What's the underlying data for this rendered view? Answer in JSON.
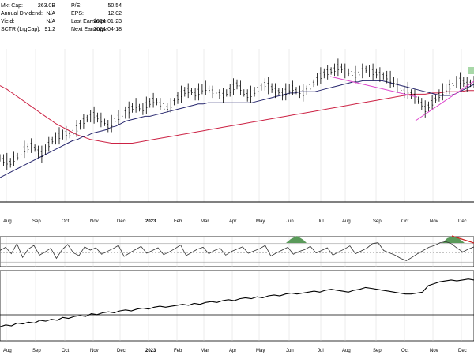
{
  "stats": [
    {
      "label": "Mkt Cap:",
      "value": "263.0B"
    },
    {
      "label": "Annual Dividend:",
      "value": "N/A"
    },
    {
      "label": "Yield:",
      "value": "N/A"
    },
    {
      "label": "SCTR (LrgCap):",
      "value": "91.2"
    },
    {
      "label": "P/E:",
      "value": "50.54"
    },
    {
      "label": "EPS:",
      "value": "12.02"
    },
    {
      "label": "Last Earnings:",
      "value": "2024-01-23"
    },
    {
      "label": "Next Earnings:",
      "value": "2024-04-18"
    }
  ],
  "chart_data": {
    "type": "line",
    "x_labels": [
      "Aug",
      "Sep",
      "Oct",
      "Nov",
      "Dec",
      "2023",
      "Feb",
      "Mar",
      "Apr",
      "May",
      "Jun",
      "Jul",
      "Aug",
      "Sep",
      "Oct",
      "Nov",
      "Dec"
    ],
    "year_labels": [
      "2023"
    ],
    "price": [
      96,
      94,
      93,
      92,
      95,
      97,
      100,
      103,
      104,
      106,
      104,
      101,
      99,
      103,
      107,
      110,
      112,
      114,
      115,
      116,
      115,
      117,
      120,
      123,
      126,
      128,
      130,
      131,
      129,
      127,
      125,
      122,
      124,
      127,
      129,
      131,
      133,
      135,
      137,
      139,
      137,
      136,
      139,
      141,
      143,
      142,
      140,
      138,
      137,
      139,
      142,
      145,
      148,
      150,
      151,
      150,
      148,
      150,
      152,
      153,
      152,
      150,
      151,
      148,
      147,
      149,
      151,
      154,
      156,
      153,
      149,
      147,
      148,
      150,
      152,
      154,
      156,
      155,
      153,
      151,
      150,
      148,
      150,
      152,
      153,
      151,
      150,
      149,
      151,
      154,
      157,
      160,
      163,
      165,
      166,
      167,
      168,
      170,
      169,
      167,
      166,
      165,
      164,
      165,
      167,
      168,
      167,
      166,
      165,
      164,
      163,
      162,
      160,
      158,
      155,
      152,
      150,
      151,
      148,
      146,
      143,
      140,
      136,
      138,
      141,
      144,
      147,
      150,
      152,
      154,
      156,
      158,
      159,
      158,
      156,
      157,
      158
    ],
    "ma50": [
      80,
      82,
      84,
      86,
      88,
      90,
      92,
      94,
      96,
      98,
      100,
      102,
      104,
      106,
      108,
      110,
      111,
      113,
      114,
      116,
      117,
      118,
      119,
      121,
      122,
      124,
      126,
      127,
      128,
      129,
      130,
      130,
      131,
      132,
      133,
      134,
      135,
      136,
      137,
      138,
      139,
      140,
      140,
      141,
      141,
      141,
      141,
      141,
      141,
      141,
      141,
      141,
      141,
      142,
      143,
      144,
      145,
      146,
      147,
      148,
      149,
      149,
      150,
      150,
      150,
      150,
      151,
      152,
      153,
      154,
      155,
      156,
      157,
      158,
      158,
      159,
      159,
      159,
      159,
      159,
      158,
      157,
      156,
      155,
      154,
      153,
      152,
      151,
      150,
      149,
      148,
      147,
      147,
      147,
      148,
      150,
      152,
      154,
      156
    ],
    "ma200": [
      155,
      152,
      148,
      144,
      140,
      136,
      132,
      128,
      124,
      121,
      118,
      115,
      113,
      111,
      110,
      109,
      108,
      108,
      108,
      108,
      109,
      110,
      111,
      112,
      113,
      114,
      115,
      116,
      117,
      118,
      119,
      120,
      121,
      122,
      123,
      124,
      125,
      126,
      127,
      128,
      129,
      130,
      131,
      132,
      133,
      134,
      135,
      136,
      137,
      138,
      139,
      140,
      141,
      142,
      143,
      144,
      145,
      146,
      147,
      148,
      148,
      148,
      149,
      149,
      150,
      150,
      150,
      151,
      151
    ],
    "rsi": [
      55,
      62,
      48,
      70,
      40,
      58,
      66,
      45,
      52,
      60,
      38,
      57,
      68,
      50,
      44,
      63,
      56,
      61,
      47,
      53,
      59,
      66,
      42,
      50,
      57,
      64,
      49,
      55,
      61,
      46,
      52,
      59,
      67,
      44,
      51,
      58,
      62,
      48,
      55,
      60,
      45,
      53,
      58,
      63,
      49,
      54,
      59,
      66,
      43,
      50,
      56,
      62,
      47,
      53,
      57,
      64,
      50,
      55,
      61,
      45,
      52,
      58,
      65,
      48,
      54,
      60,
      70,
      72,
      55,
      50,
      45,
      38,
      33,
      40,
      48,
      55,
      62,
      66,
      72,
      74,
      70,
      60,
      52,
      58,
      63
    ],
    "rsi_lines": [
      30,
      50,
      70
    ],
    "lower": [
      30,
      32,
      31,
      34,
      33,
      35,
      34,
      37,
      36,
      38,
      37,
      40,
      39,
      41,
      42,
      41,
      44,
      43,
      45,
      46,
      45,
      47,
      48,
      47,
      49,
      50,
      49,
      51,
      52,
      51,
      52,
      53,
      54,
      53,
      55,
      54,
      56,
      57,
      56,
      58,
      59,
      58,
      60,
      61,
      60,
      62,
      61,
      63,
      64,
      63,
      65,
      66,
      65,
      66,
      67,
      68,
      67,
      69,
      70,
      69,
      68,
      67,
      69,
      70,
      72,
      71,
      70,
      69,
      68,
      67,
      66,
      65,
      65,
      66,
      67,
      74,
      76,
      78,
      79,
      80,
      79,
      80,
      81,
      80
    ],
    "colors": {
      "price": "#000000",
      "ma50": "#27276e",
      "ma200": "#cc2244",
      "trend": "#dd44cc",
      "green_fill": "#5a9a5a",
      "red_trend": "#cc2222",
      "grid": "#d8d8d8"
    }
  }
}
